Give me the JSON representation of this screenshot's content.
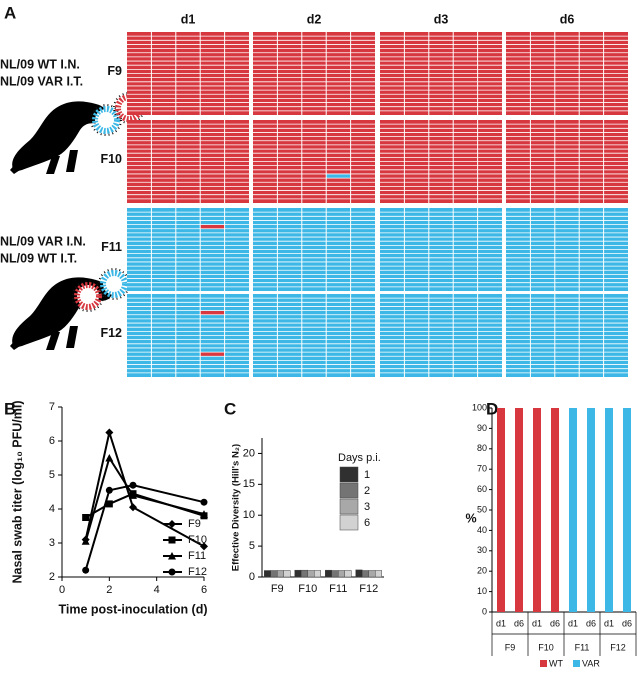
{
  "chart_data": [
    {
      "type": "clone-grid",
      "label": "A",
      "columns": [
        "d1",
        "d2",
        "d3",
        "d6"
      ],
      "colors": [
        "#d7373f",
        "#3db8e6"
      ],
      "rows": [
        {
          "name": "F9",
          "color_index": 0,
          "minor_counts": [
            0,
            0,
            0,
            0
          ]
        },
        {
          "name": "F10",
          "color_index": 0,
          "minor_counts": [
            0,
            1,
            0,
            0
          ]
        },
        {
          "name": "F11",
          "color_index": 1,
          "minor_counts": [
            1,
            0,
            0,
            0
          ]
        },
        {
          "name": "F12",
          "color_index": 1,
          "minor_counts": [
            2,
            0,
            0,
            0
          ]
        }
      ],
      "legend": [
        [
          {
            "text": "NL/09 WT I.N.",
            "color_index": 0
          },
          {
            "text": "NL/09 VAR I.T.",
            "color_index": 1
          }
        ],
        [
          {
            "text": "NL/09 VAR I.N.",
            "color_index": 1
          },
          {
            "text": "NL/09 WT I.T.",
            "color_index": 0
          }
        ]
      ]
    },
    {
      "type": "line",
      "label": "B",
      "x_label": "Time post-inoculation (d)",
      "y_label": "Nasal swab titer (log₁₀ PFU/ml)",
      "x": [
        1,
        2,
        3,
        6
      ],
      "xlim": [
        0,
        6
      ],
      "xticks": [
        0,
        2,
        4,
        6
      ],
      "ylim": [
        2,
        7
      ],
      "yticks": [
        2,
        3,
        4,
        5,
        6,
        7
      ],
      "legend": "lower right",
      "series": [
        {
          "name": "F9",
          "color": "#000000",
          "marker": "diamond",
          "values": [
            3.1,
            6.25,
            4.05,
            2.9
          ]
        },
        {
          "name": "F10",
          "color": "#000000",
          "marker": "square",
          "values": [
            3.75,
            4.15,
            4.45,
            3.8
          ]
        },
        {
          "name": "F11",
          "color": "#000000",
          "marker": "triangle",
          "values": [
            3.05,
            5.5,
            4.4,
            3.85
          ]
        },
        {
          "name": "F12",
          "color": "#000000",
          "marker": "circle",
          "values": [
            2.2,
            4.55,
            4.7,
            4.2
          ]
        }
      ]
    },
    {
      "type": "bar",
      "label": "C",
      "y_label": "Effective Diversity (Hill's N₂)",
      "categories": [
        "F9",
        "F10",
        "F11",
        "F12"
      ],
      "ylim": [
        0,
        22.5
      ],
      "yticks": [
        0,
        5,
        10,
        15,
        20
      ],
      "legend": "upper right",
      "legend_title": "Days p.i.",
      "series": [
        {
          "name": "1",
          "color": "#303030",
          "values": [
            1.05,
            1.1,
            1.1,
            1.15
          ]
        },
        {
          "name": "2",
          "color": "#747474",
          "values": [
            1.05,
            1.1,
            1.05,
            1.05
          ]
        },
        {
          "name": "3",
          "color": "#a8a8a8",
          "values": [
            1.05,
            1.05,
            1.05,
            1.05
          ]
        },
        {
          "name": "6",
          "color": "#d2d2d2",
          "values": [
            1.05,
            1.05,
            1.05,
            1.05
          ]
        }
      ]
    },
    {
      "type": "stacked-bar",
      "label": "D",
      "y_label": "%",
      "categories": [
        "d1",
        "d6",
        "d1",
        "d6",
        "d1",
        "d6",
        "d1",
        "d6"
      ],
      "groups": [
        "F9",
        "F10",
        "F11",
        "F12"
      ],
      "ylim": [
        0,
        100
      ],
      "yticks": [
        0,
        10,
        20,
        30,
        40,
        50,
        60,
        70,
        80,
        90,
        100
      ],
      "legend": "bottom",
      "series": [
        {
          "name": "WT",
          "color": "#d7373f",
          "values": [
            100,
            100,
            100,
            100,
            0,
            0,
            0,
            0
          ]
        },
        {
          "name": "VAR",
          "color": "#3db8e6",
          "values": [
            0,
            0,
            0,
            0,
            100,
            100,
            100,
            100
          ]
        }
      ]
    }
  ]
}
